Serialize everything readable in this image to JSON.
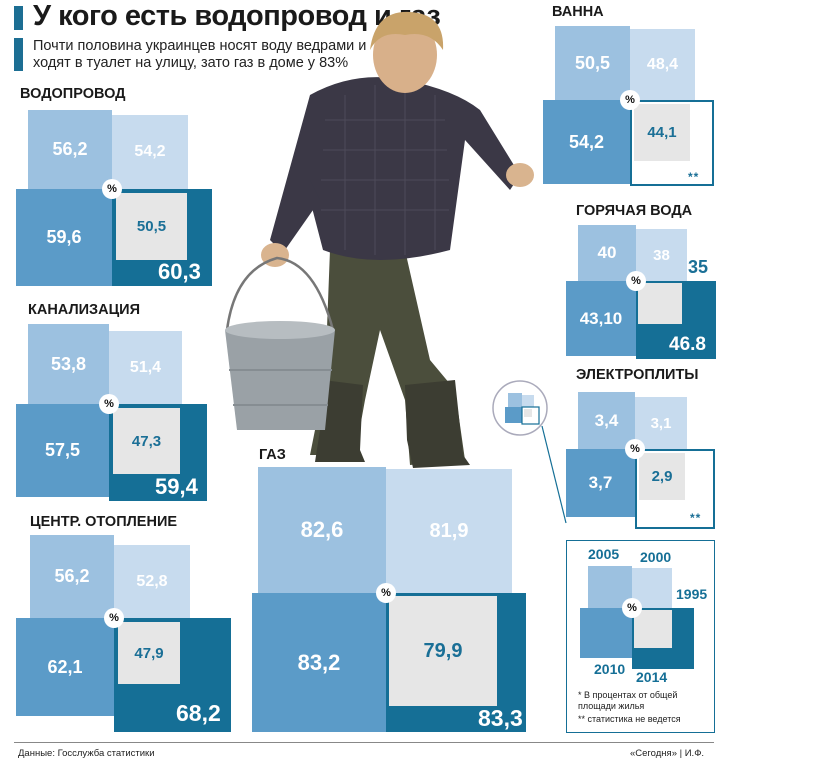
{
  "header": {
    "title": "У кого есть водопровод и газ",
    "subtitle": "Почти половина украинцев носят воду ведрами и ходят в туалет на улицу, зато газ в доме у 83%"
  },
  "pct_symbol": "%",
  "colors": {
    "y2005": "#9cc1e0",
    "y2000": "#c7dbee",
    "y2010": "#5b9bc8",
    "y2014": "#156f96",
    "y1995": "#e6e6e6"
  },
  "sections": {
    "vodoprovod": {
      "label": "ВОДОПРОВОД",
      "v2005": "56,2",
      "v2000": "54,2",
      "v2010": "59,6",
      "v1995": "50,5",
      "v2014": "60,3"
    },
    "kanalizaciya": {
      "label": "КАНАЛИЗАЦИЯ",
      "v2005": "53,8",
      "v2000": "51,4",
      "v2010": "57,5",
      "v1995": "47,3",
      "v2014": "59,4"
    },
    "otoplenie": {
      "label": "ЦЕНТР. ОТОПЛЕНИЕ",
      "v2005": "56,2",
      "v2000": "52,8",
      "v2010": "62,1",
      "v1995": "47,9",
      "v2014": "68,2"
    },
    "gaz": {
      "label": "ГАЗ",
      "v2005": "82,6",
      "v2000": "81,9",
      "v2010": "83,2",
      "v1995": "79,9",
      "v2014": "83,3"
    },
    "vanna": {
      "label": "ВАННА",
      "v2005": "50,5",
      "v2000": "48,4",
      "v2010": "54,2",
      "v1995": "44,1",
      "v2014_note": "**"
    },
    "goryachaya": {
      "label": "ГОРЯЧАЯ ВОДА",
      "v2005": "40",
      "v2000": "38",
      "v2010": "43,10",
      "v1995": "35",
      "v2014": "46.8"
    },
    "elektroplity": {
      "label": "ЭЛЕКТРОПЛИТЫ",
      "v2005": "3,4",
      "v2000": "3,1",
      "v2010": "3,7",
      "v1995": "2,9",
      "v2014_note": "**"
    }
  },
  "legend": {
    "y2005": "2005",
    "y2000": "2000",
    "y1995": "1995",
    "y2010": "2010",
    "y2014": "2014",
    "note1": "* В процентах от общей площади жилья",
    "note2": "** статистика не ведется"
  },
  "footer": {
    "source": "Данные: Госслужба статистики",
    "credit": "«Сегодня» | И.Ф."
  }
}
